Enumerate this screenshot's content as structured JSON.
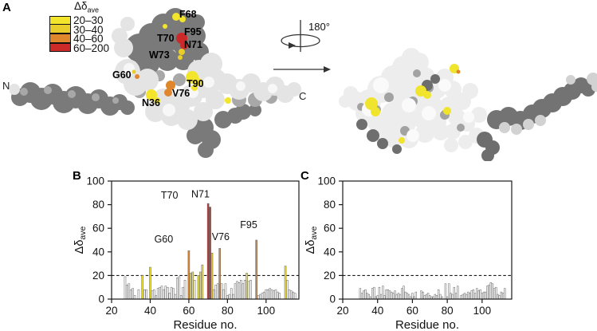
{
  "panel_labels": {
    "a": "A",
    "b": "B",
    "c": "C"
  },
  "structure_view": {
    "n_terminus": "N",
    "c_terminus": "C",
    "rotation_angle": "180°",
    "legend": {
      "title_main": "Δδ",
      "title_sub": "ave",
      "entries": [
        {
          "range": "20–30",
          "color": "#f3e52b"
        },
        {
          "range": "30–40",
          "color": "#e8cd2b"
        },
        {
          "range": "40–60",
          "color": "#e0872d"
        },
        {
          "range": "60–200",
          "color": "#cc2a28"
        }
      ]
    },
    "residue_labels": [
      "F68",
      "F95",
      "T70",
      "N71",
      "W73",
      "G60",
      "T90",
      "V76",
      "N36"
    ]
  },
  "chart_data": [
    {
      "type": "bar",
      "panel": "B",
      "title": "",
      "xlabel": "Residue no.",
      "ylabel_main": "Δδ",
      "ylabel_sub": "ave",
      "xlim": [
        20,
        117
      ],
      "ylim": [
        0,
        100
      ],
      "xticks": [
        20,
        40,
        60,
        80,
        100
      ],
      "yticks": [
        0,
        20,
        40,
        60,
        80,
        100
      ],
      "threshold": 20,
      "grid": false,
      "legend_position": "none",
      "bar_outline": "#6b6b6b",
      "color_rules": [
        {
          "min": 60,
          "color": "#cc2a28"
        },
        {
          "min": 40,
          "color": "#e0872d"
        },
        {
          "min": 30,
          "color": "#e8cd2b"
        },
        {
          "min": 20,
          "color": "#f3e52b"
        },
        {
          "min": 0,
          "color": "#ffffff"
        }
      ],
      "x": [
        27,
        28,
        29,
        30,
        31,
        32,
        34,
        36,
        37,
        38,
        40,
        41,
        42,
        43,
        44,
        45,
        46,
        47,
        48,
        49,
        50,
        51,
        52,
        53,
        54,
        55,
        56,
        57,
        58,
        60,
        61,
        62,
        63,
        65,
        66,
        67,
        70,
        71,
        72,
        73,
        74,
        75,
        76,
        77,
        78,
        79,
        80,
        81,
        82,
        83,
        84,
        85,
        86,
        87,
        88,
        89,
        90,
        91,
        92,
        95,
        96,
        97,
        98,
        99,
        100,
        101,
        102,
        103,
        104,
        105,
        106,
        107,
        110,
        111,
        112,
        113,
        114,
        115
      ],
      "values": [
        19,
        12,
        13,
        8,
        9,
        3,
        8,
        20,
        8,
        8,
        27,
        7,
        8,
        3,
        9,
        10,
        11,
        8,
        11,
        10,
        5,
        10,
        9,
        4,
        18,
        19,
        3,
        10,
        16,
        41,
        22,
        23,
        16,
        20,
        23,
        29,
        81,
        78,
        39,
        8,
        12,
        13,
        43,
        13,
        8,
        13,
        3,
        4,
        9,
        4,
        13,
        15,
        14,
        16,
        13,
        16,
        22,
        15,
        16,
        50,
        3,
        4,
        5,
        6,
        8,
        8,
        9,
        8,
        7,
        8,
        6,
        5,
        28,
        16,
        8,
        7,
        6,
        5
      ],
      "annotations": [
        {
          "text": "G60",
          "res": 47,
          "val": 48
        },
        {
          "text": "T70",
          "res": 50,
          "val": 85
        },
        {
          "text": "N71",
          "res": 66,
          "val": 86
        },
        {
          "text": "V76",
          "res": 76.5,
          "val": 50
        },
        {
          "text": "F95",
          "res": 91,
          "val": 60
        }
      ]
    },
    {
      "type": "bar",
      "panel": "C",
      "title": "",
      "xlabel": "Residue no.",
      "ylabel_main": "Δδ",
      "ylabel_sub": "ave",
      "xlim": [
        20,
        117
      ],
      "ylim": [
        0,
        100
      ],
      "xticks": [
        20,
        40,
        60,
        80,
        100
      ],
      "yticks": [
        0,
        20,
        40,
        60,
        80,
        100
      ],
      "threshold": 20,
      "grid": false,
      "legend_position": "none",
      "bar_outline": "#6b6b6b",
      "color_rules": [
        {
          "min": 60,
          "color": "#cc2a28"
        },
        {
          "min": 40,
          "color": "#e0872d"
        },
        {
          "min": 30,
          "color": "#e8cd2b"
        },
        {
          "min": 20,
          "color": "#f3e52b"
        },
        {
          "min": 0,
          "color": "#ffffff"
        }
      ],
      "x": [
        30,
        31,
        32,
        33,
        34,
        35,
        36,
        37,
        38,
        39,
        40,
        41,
        42,
        43,
        44,
        45,
        46,
        47,
        48,
        49,
        50,
        51,
        52,
        53,
        54,
        55,
        56,
        57,
        58,
        59,
        60,
        61,
        62,
        65,
        66,
        67,
        68,
        69,
        70,
        71,
        72,
        73,
        74,
        75,
        76,
        77,
        79,
        80,
        81,
        82,
        83,
        84,
        85,
        86,
        88,
        89,
        90,
        91,
        92,
        93,
        94,
        95,
        96,
        97,
        98,
        99,
        100,
        101,
        102,
        103,
        104,
        105,
        106,
        107,
        108,
        109,
        110,
        111,
        112,
        113
      ],
      "values": [
        9,
        5,
        7,
        8,
        5,
        4,
        2,
        9,
        10,
        2,
        3,
        10,
        4,
        11,
        3,
        8,
        8,
        7,
        6,
        5,
        7,
        4,
        5,
        4,
        9,
        11,
        6,
        5,
        4,
        2,
        5,
        2,
        6,
        7,
        6,
        3,
        4,
        5,
        3,
        2,
        2,
        4,
        3,
        8,
        4,
        2,
        13,
        2,
        13,
        5,
        4,
        10,
        5,
        11,
        3,
        4,
        5,
        4,
        6,
        5,
        7,
        8,
        5,
        9,
        7,
        8,
        5,
        6,
        6,
        11,
        12,
        14,
        13,
        9,
        10,
        4,
        3,
        6,
        5,
        9
      ],
      "annotations": []
    }
  ]
}
